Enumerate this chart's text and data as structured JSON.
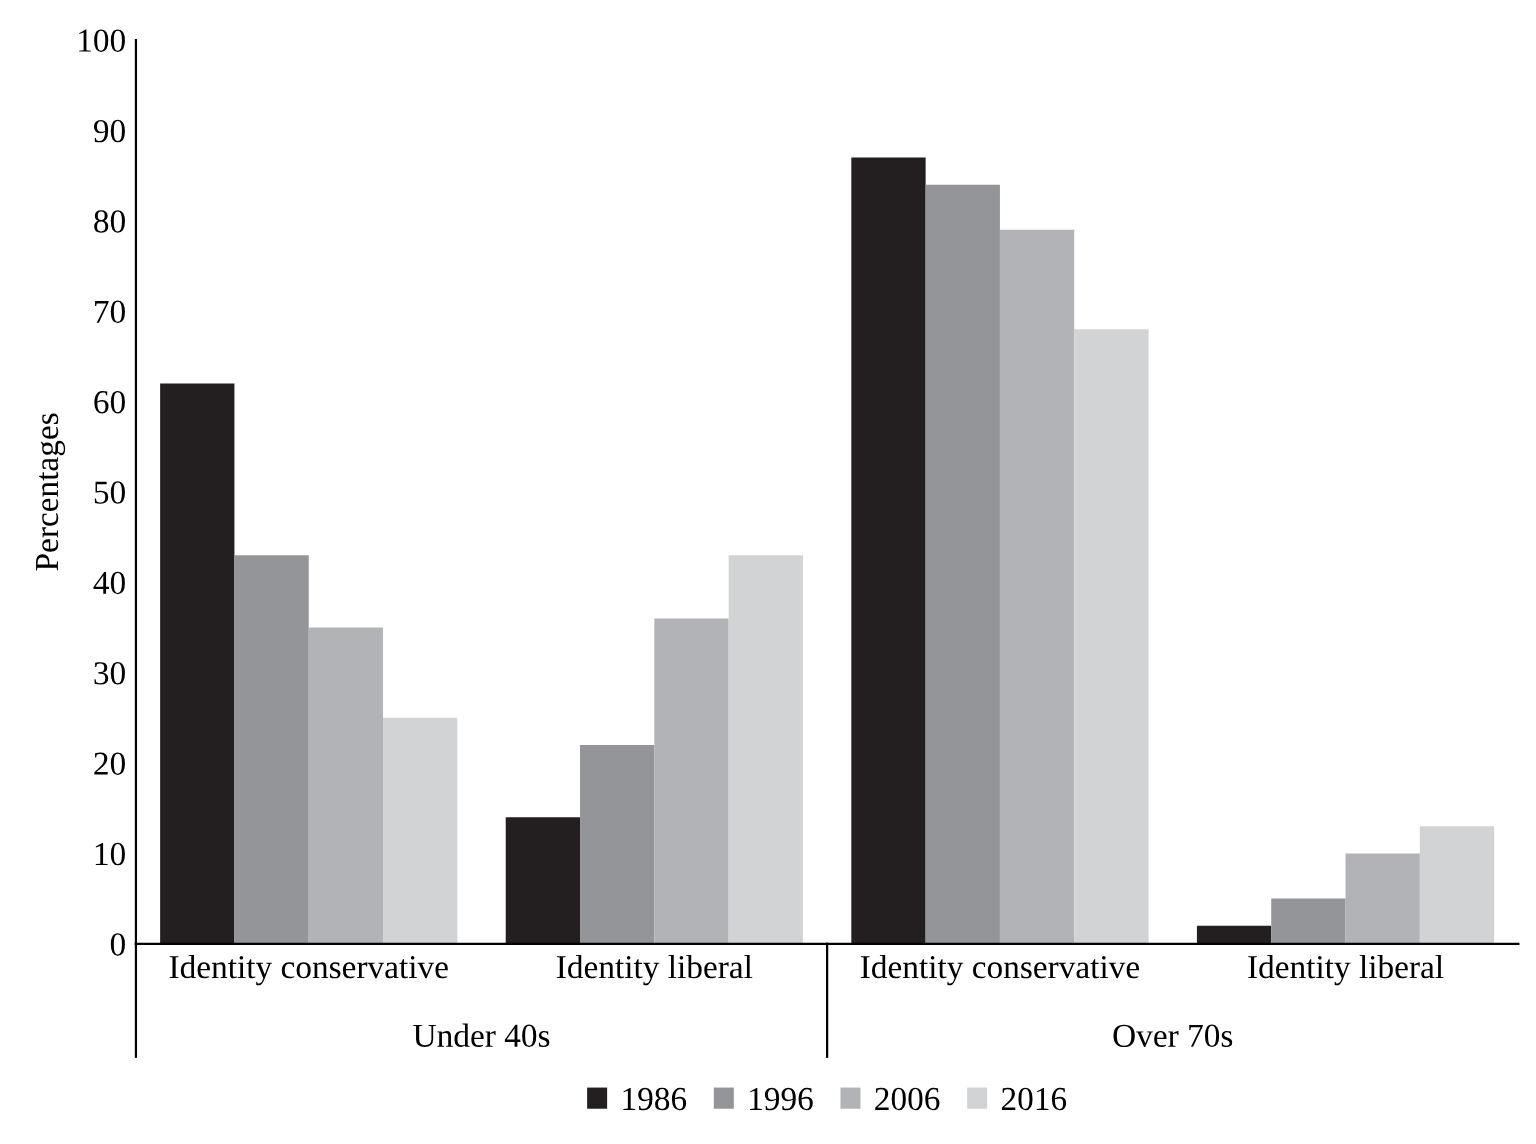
{
  "chart_data": {
    "type": "bar",
    "ylabel": "Percentages",
    "categories": [
      "Identity conservative",
      "Identity liberal",
      "Identity conservative",
      "Identity liberal"
    ],
    "series": [
      {
        "name": "1986",
        "color": "#231f20",
        "values": [
          62,
          14,
          87,
          2
        ]
      },
      {
        "name": "1996",
        "color": "#939598",
        "values": [
          43,
          22,
          84,
          5
        ]
      },
      {
        "name": "2006",
        "color": "#b1b3b6",
        "values": [
          35,
          36,
          79,
          10
        ]
      },
      {
        "name": "2016",
        "color": "#d1d3d4",
        "values": [
          25,
          43,
          68,
          13
        ]
      }
    ],
    "annotations": [
      "Under 40s",
      "Over 70s"
    ],
    "ylim": [
      0,
      100
    ],
    "yticks": [
      0,
      10,
      20,
      30,
      40,
      50,
      60,
      70,
      80,
      90,
      100
    ],
    "grid": false,
    "legend": "bottom"
  }
}
